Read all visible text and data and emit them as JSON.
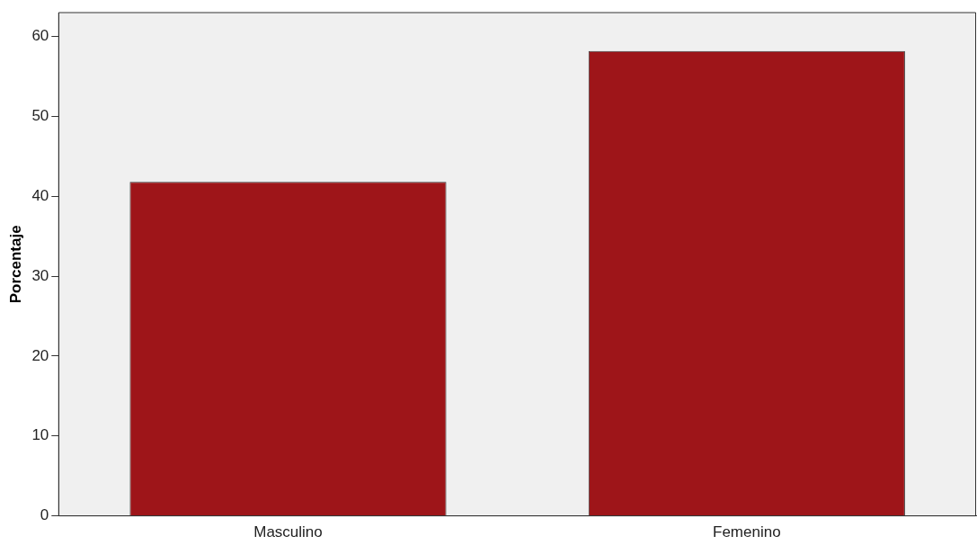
{
  "chart_data": {
    "type": "bar",
    "ylabel": "Porcentaje",
    "categories": [
      "Masculino",
      "Femenino"
    ],
    "values": [
      41.8,
      58.2
    ],
    "color": "#9e1519",
    "ylim": [
      0,
      63
    ],
    "yticks": [
      0,
      10,
      20,
      30,
      40,
      50,
      60
    ],
    "grid": false,
    "legend": false
  }
}
